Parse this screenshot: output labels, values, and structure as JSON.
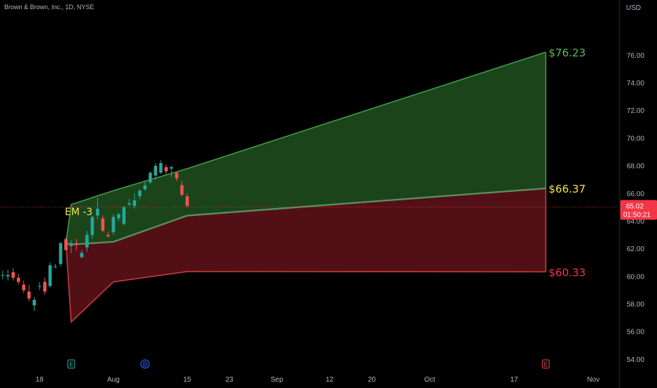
{
  "header": {
    "symbol_label": "Brown & Brown, Inc., 1D, NYSE"
  },
  "chart_data": {
    "type": "candlestick",
    "currency": "USD",
    "ylim": [
      53.2,
      80.0
    ],
    "y_ticks": [
      54,
      56,
      58,
      60,
      62,
      64,
      66,
      68,
      70,
      72,
      74,
      76
    ],
    "y_tick_labels": [
      "54.00",
      "56.00",
      "58.00",
      "60.00",
      "62.00",
      "64.00",
      "66.00",
      "68.00",
      "70.00",
      "72.00",
      "74.00",
      "76.00"
    ],
    "x_ticks": [
      {
        "label": "18",
        "day": 17
      },
      {
        "label": "Aug",
        "day": 31
      },
      {
        "label": "15",
        "day": 45
      },
      {
        "label": "23",
        "day": 53
      },
      {
        "label": "Sep",
        "day": 62
      },
      {
        "label": "12",
        "day": 72
      },
      {
        "label": "20",
        "day": 80
      },
      {
        "label": "Oct",
        "day": 91
      },
      {
        "label": "17",
        "day": 107
      },
      {
        "label": "Nov",
        "day": 122
      }
    ],
    "x_range_days": [
      9.5,
      127
    ],
    "events": [
      {
        "label": "E",
        "day": 23,
        "color": "#26a69a"
      },
      {
        "label": "D",
        "day": 37,
        "color": "#2962ff"
      },
      {
        "label": "E",
        "day": 113,
        "color": "#f23645"
      }
    ],
    "candles": [
      {
        "day": 10,
        "o": 60.1,
        "h": 60.4,
        "l": 59.8,
        "c": 60.1
      },
      {
        "day": 11,
        "o": 60.0,
        "h": 60.5,
        "l": 59.7,
        "c": 60.1
      },
      {
        "day": 12,
        "o": 60.3,
        "h": 60.6,
        "l": 59.7,
        "c": 59.9
      },
      {
        "day": 13,
        "o": 59.9,
        "h": 60.2,
        "l": 59.4,
        "c": 59.6
      },
      {
        "day": 14,
        "o": 59.4,
        "h": 59.7,
        "l": 58.8,
        "c": 59.0
      },
      {
        "day": 15,
        "o": 58.9,
        "h": 59.4,
        "l": 58.2,
        "c": 58.4
      },
      {
        "day": 16,
        "o": 57.9,
        "h": 58.5,
        "l": 57.5,
        "c": 58.3
      },
      {
        "day": 17,
        "o": 59.3,
        "h": 59.6,
        "l": 59.0,
        "c": 59.3
      },
      {
        "day": 18,
        "o": 59.6,
        "h": 59.9,
        "l": 58.7,
        "c": 58.9
      },
      {
        "day": 19,
        "o": 59.3,
        "h": 61.0,
        "l": 59.2,
        "c": 60.8
      },
      {
        "day": 20,
        "o": 60.7,
        "h": 60.9,
        "l": 60.6,
        "c": 60.7
      },
      {
        "day": 21,
        "o": 60.9,
        "h": 62.5,
        "l": 60.7,
        "c": 62.4
      },
      {
        "day": 22,
        "o": 62.7,
        "h": 62.8,
        "l": 61.9,
        "c": 61.9
      },
      {
        "day": 23,
        "o": 62.2,
        "h": 62.6,
        "l": 61.7,
        "c": 62.4
      },
      {
        "day": 24,
        "o": 62.4,
        "h": 62.7,
        "l": 61.9,
        "c": 62.3
      },
      {
        "day": 25,
        "o": 61.4,
        "h": 61.9,
        "l": 61.3,
        "c": 61.7
      },
      {
        "day": 26,
        "o": 62.1,
        "h": 63.3,
        "l": 61.8,
        "c": 63.0
      },
      {
        "day": 27,
        "o": 63.0,
        "h": 64.4,
        "l": 62.7,
        "c": 64.3
      },
      {
        "day": 28,
        "o": 64.4,
        "h": 65.7,
        "l": 64.1,
        "c": 64.9
      },
      {
        "day": 29,
        "o": 64.2,
        "h": 64.4,
        "l": 63.2,
        "c": 63.3
      },
      {
        "day": 30,
        "o": 63.0,
        "h": 63.2,
        "l": 62.8,
        "c": 62.9
      },
      {
        "day": 31,
        "o": 63.2,
        "h": 64.5,
        "l": 63.0,
        "c": 64.3
      },
      {
        "day": 32,
        "o": 64.2,
        "h": 64.6,
        "l": 64.0,
        "c": 64.5
      },
      {
        "day": 33,
        "o": 63.8,
        "h": 65.1,
        "l": 63.7,
        "c": 65.0
      },
      {
        "day": 34,
        "o": 65.2,
        "h": 65.6,
        "l": 65.1,
        "c": 65.3
      },
      {
        "day": 35,
        "o": 65.1,
        "h": 66.0,
        "l": 64.9,
        "c": 65.5
      },
      {
        "day": 36,
        "o": 65.8,
        "h": 66.3,
        "l": 65.6,
        "c": 66.2
      },
      {
        "day": 37,
        "o": 66.3,
        "h": 66.9,
        "l": 66.2,
        "c": 66.6
      },
      {
        "day": 38,
        "o": 66.8,
        "h": 67.6,
        "l": 66.7,
        "c": 67.5
      },
      {
        "day": 39,
        "o": 67.3,
        "h": 68.2,
        "l": 67.0,
        "c": 68.0
      },
      {
        "day": 40,
        "o": 67.5,
        "h": 68.4,
        "l": 67.4,
        "c": 68.2
      },
      {
        "day": 41,
        "o": 67.9,
        "h": 68.1,
        "l": 67.4,
        "c": 67.6
      },
      {
        "day": 42,
        "o": 67.8,
        "h": 68.0,
        "l": 67.2,
        "c": 67.9
      },
      {
        "day": 43,
        "o": 67.5,
        "h": 67.6,
        "l": 66.9,
        "c": 67.1
      },
      {
        "day": 44,
        "o": 66.6,
        "h": 66.9,
        "l": 65.8,
        "c": 65.9
      },
      {
        "day": 45,
        "o": 65.8,
        "h": 66.0,
        "l": 65.0,
        "c": 65.1
      }
    ],
    "em_label": "EM -3",
    "em_cones": {
      "upper": {
        "color": "#3f9a4a",
        "points": [
          [
            22,
            62.4
          ],
          [
            23,
            65.2
          ],
          [
            31,
            66.2
          ],
          [
            45,
            67.8
          ],
          [
            113,
            76.23
          ]
        ]
      },
      "mid_up": {
        "color": "#3f9a4a",
        "points": [
          [
            22,
            62.4
          ],
          [
            23,
            62.3
          ],
          [
            31,
            62.5
          ],
          [
            45,
            64.4
          ],
          [
            113,
            66.37
          ]
        ]
      },
      "mid": {
        "color": "#888888",
        "points": [
          [
            22,
            62.4
          ],
          [
            23,
            62.3
          ],
          [
            31,
            62.5
          ],
          [
            45,
            64.4
          ],
          [
            113,
            66.37
          ]
        ]
      },
      "lower": {
        "color": "#c83c3c",
        "points": [
          [
            22,
            62.4
          ],
          [
            23,
            56.7
          ],
          [
            31,
            59.6
          ],
          [
            45,
            60.35
          ],
          [
            113,
            60.33
          ]
        ]
      }
    },
    "targets": [
      {
        "label": "$76.23",
        "value": 76.23,
        "color": "#5cb85c"
      },
      {
        "label": "$66.37",
        "value": 66.37,
        "color": "#f5e34b"
      },
      {
        "label": "$60.33",
        "value": 60.33,
        "color": "#f23645"
      }
    ],
    "current_price": {
      "value": 65.02,
      "price_label": "65.02",
      "countdown": "01:50:21",
      "color": "#f23645"
    }
  },
  "y_axis": {
    "unit_label": "USD"
  }
}
